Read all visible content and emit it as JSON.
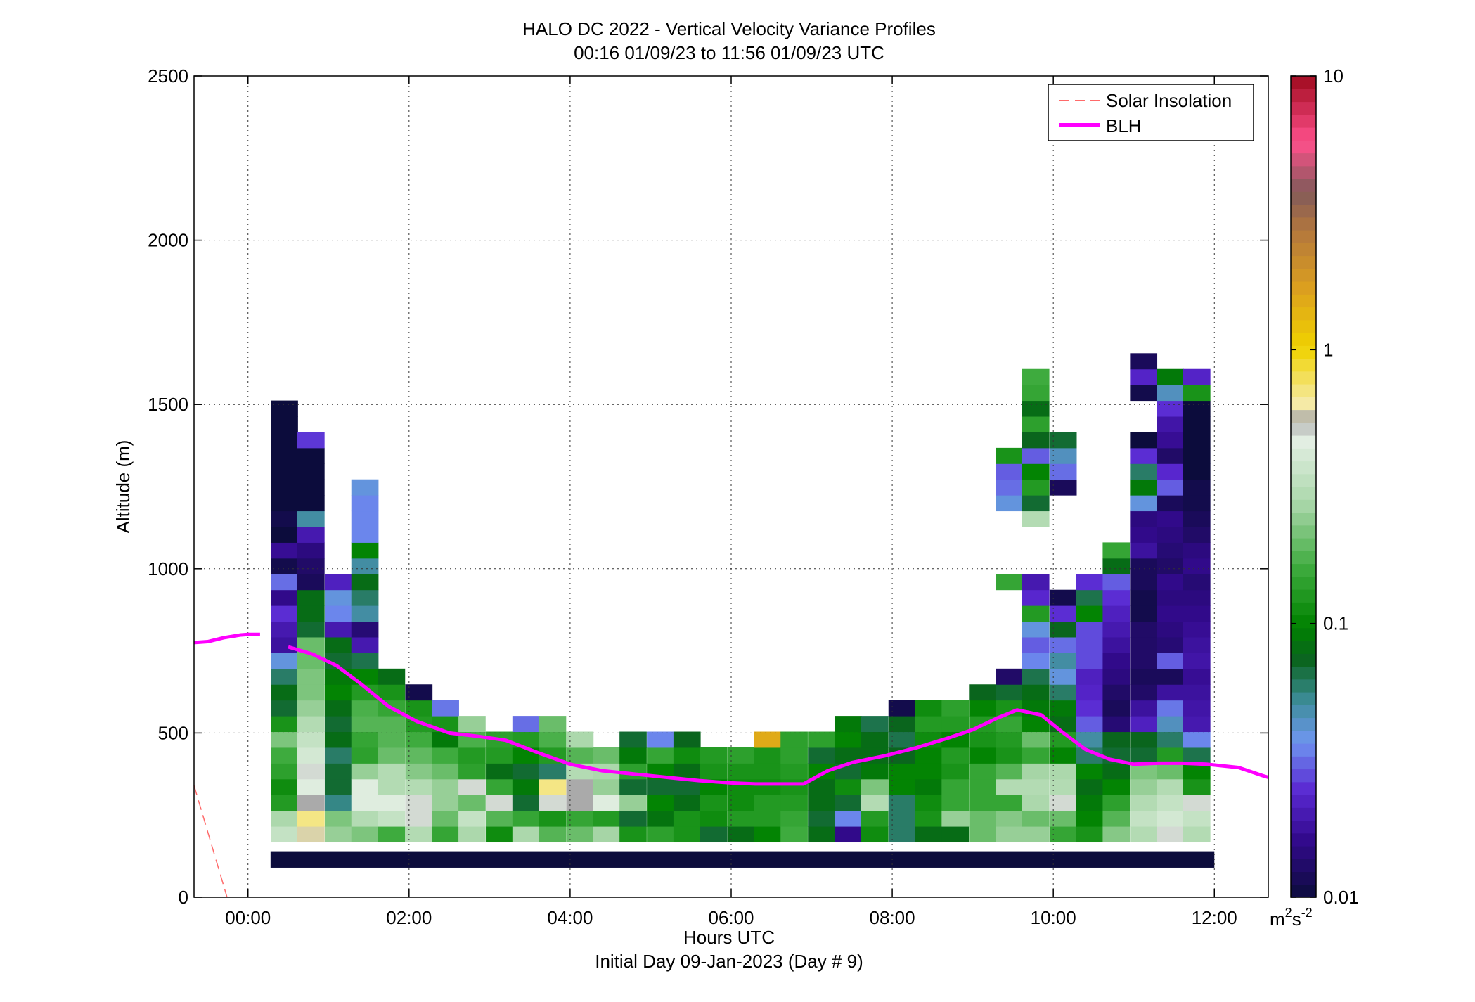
{
  "chart_data": {
    "type": "heatmap",
    "title": "HALO DC 2022 - Vertical Velocity Variance Profiles",
    "subtitle": "00:16 01/09/23 to 11:56 01/09/23  UTC",
    "xlabel": "Hours UTC",
    "xlabel2": "Initial Day 09-Jan-2023 (Day # 9)",
    "ylabel": "Altitude (m)",
    "x_unit": "hours",
    "xlim": [
      -0.67,
      12.67
    ],
    "ylim": [
      0,
      2500
    ],
    "x_ticks": [
      0,
      2,
      4,
      6,
      8,
      10,
      12
    ],
    "x_tick_labels": [
      "00:00",
      "02:00",
      "04:00",
      "06:00",
      "08:00",
      "10:00",
      "12:00"
    ],
    "y_ticks": [
      0,
      500,
      1000,
      1500,
      2000,
      2500
    ],
    "y_tick_labels": [
      "0",
      "500",
      "1000",
      "1500",
      "2000",
      "2500"
    ],
    "grid": true,
    "colorbar": {
      "scale": "log",
      "range": [
        0.01,
        10
      ],
      "ticks": [
        0.01,
        0.1,
        1,
        10
      ],
      "tick_labels": [
        "0.01",
        "0.1",
        "1",
        "10"
      ],
      "unit_base": "m",
      "unit_exp1": "2",
      "unit_mid": "s",
      "unit_exp2": "-2"
    },
    "legend": {
      "position": "top-right",
      "entries": [
        {
          "label": "Solar Insolation",
          "color": "#ff6a6a",
          "style": "dashed"
        },
        {
          "label": "BLH",
          "color": "#ff00ff",
          "style": "solid"
        }
      ]
    },
    "heatmap": {
      "dx_hours": 0.3333,
      "dy_m": 48,
      "base_altitude_m": 168,
      "bottom_band": {
        "x_start": 0.28,
        "x_end": 12.0,
        "alt_low": 90,
        "alt_high": 140,
        "value": 0.01
      },
      "columns": [
        {
          "x": 0.45,
          "values": [
            0.35,
            0.28,
            0.13,
            0.11,
            0.14,
            0.16,
            0.22,
            0.12,
            0.07,
            0.08,
            0.06,
            0.04,
            0.018,
            0.02,
            0.025,
            0.016,
            0.032,
            0.011,
            0.017,
            0.01,
            0.011,
            0.01,
            0.01,
            0.01,
            0.01,
            0.01,
            0.01,
            0.01
          ]
        },
        {
          "x": 0.78,
          "values": [
            0.6,
            0.7,
            0.55,
            0.45,
            0.5,
            0.4,
            0.35,
            0.3,
            0.25,
            0.22,
            0.22,
            0.2,
            0.2,
            0.07,
            0.08,
            0.08,
            0.012,
            0.013,
            0.015,
            0.02,
            0.05,
            0.01,
            0.01,
            0.01,
            0.01,
            0.026
          ]
        },
        {
          "x": 1.12,
          "values": [
            0.25,
            0.22,
            0.055,
            0.07,
            0.07,
            0.06,
            0.08,
            0.07,
            0.08,
            0.1,
            0.09,
            0.07,
            0.08,
            0.02,
            0.035,
            0.04,
            0.022
          ]
        },
        {
          "x": 1.45,
          "values": [
            0.22,
            0.3,
            0.45,
            0.45,
            0.25,
            0.14,
            0.15,
            0.18,
            0.17,
            0.13,
            0.1,
            0.065,
            0.02,
            0.014,
            0.05,
            0.06,
            0.08,
            0.05,
            0.1,
            0.035,
            0.035,
            0.035,
            0.04
          ]
        },
        {
          "x": 1.78,
          "values": [
            0.16,
            0.35,
            0.45,
            0.3,
            0.3,
            0.2,
            0.18,
            0.18,
            0.15,
            0.12,
            0.08
          ]
        },
        {
          "x": 2.12,
          "values": [
            0.3,
            0.5,
            0.5,
            0.3,
            0.23,
            0.19,
            0.16,
            0.13,
            0.12,
            0.011
          ]
        },
        {
          "x": 2.45,
          "values": [
            0.15,
            0.2,
            0.25,
            0.25,
            0.2,
            0.16,
            0.09,
            0.12,
            0.033
          ]
        },
        {
          "x": 2.78,
          "values": [
            0.28,
            0.35,
            0.2,
            0.5,
            0.14,
            0.13,
            0.17,
            0.25
          ]
        },
        {
          "x": 3.12,
          "values": [
            0.11,
            0.18,
            0.5,
            0.15,
            0.08,
            0.13,
            0.14
          ]
        },
        {
          "x": 3.45,
          "values": [
            0.28,
            0.15,
            0.07,
            0.09,
            0.07,
            0.1,
            0.13,
            0.032
          ]
        },
        {
          "x": 3.78,
          "values": [
            0.18,
            0.12,
            0.5,
            0.7,
            0.06,
            0.13,
            0.17,
            0.2
          ]
        },
        {
          "x": 4.12,
          "values": [
            0.2,
            0.15,
            0.55,
            0.55,
            0.3,
            0.18,
            0.28
          ]
        },
        {
          "x": 4.45,
          "values": [
            0.27,
            0.13,
            0.45,
            0.25,
            0.28,
            0.2
          ]
        },
        {
          "x": 4.78,
          "values": [
            0.12,
            0.07,
            0.25,
            0.07,
            0.14,
            0.09,
            0.07
          ]
        },
        {
          "x": 5.12,
          "values": [
            0.14,
            0.085,
            0.1,
            0.07,
            0.1,
            0.15,
            0.035
          ]
        },
        {
          "x": 5.45,
          "values": [
            0.12,
            0.12,
            0.08,
            0.07,
            0.08,
            0.11,
            0.075
          ]
        },
        {
          "x": 5.78,
          "values": [
            0.07,
            0.11,
            0.12,
            0.1,
            0.12,
            0.13
          ]
        },
        {
          "x": 6.12,
          "values": [
            0.08,
            0.13,
            0.11,
            0.11,
            0.12,
            0.14
          ]
        },
        {
          "x": 6.45,
          "values": [
            0.1,
            0.13,
            0.13,
            0.11,
            0.12,
            0.12,
            1.5
          ]
        },
        {
          "x": 6.78,
          "values": [
            0.16,
            0.15,
            0.13,
            0.12,
            0.13,
            0.14,
            0.14
          ]
        },
        {
          "x": 7.12,
          "values": [
            0.08,
            0.07,
            0.08,
            0.08,
            0.1,
            0.07,
            0.14
          ]
        },
        {
          "x": 7.45,
          "values": [
            0.016,
            0.035,
            0.07,
            0.11,
            0.07,
            0.08,
            0.1,
            0.09
          ]
        },
        {
          "x": 7.78,
          "values": [
            0.11,
            0.13,
            0.3,
            0.22,
            0.09,
            0.08,
            0.08,
            0.065
          ]
        },
        {
          "x": 8.12,
          "values": [
            0.06,
            0.06,
            0.06,
            0.1,
            0.1,
            0.075,
            0.065,
            0.075,
            0.011
          ]
        },
        {
          "x": 8.45,
          "values": [
            0.08,
            0.12,
            0.11,
            0.09,
            0.1,
            0.1,
            0.11,
            0.13,
            0.11
          ]
        },
        {
          "x": 8.78,
          "values": [
            0.08,
            0.25,
            0.15,
            0.15,
            0.12,
            0.13,
            0.1,
            0.13,
            0.14
          ]
        },
        {
          "x": 9.12,
          "values": [
            0.2,
            0.2,
            0.15,
            0.15,
            0.15,
            0.1,
            0.12,
            0.13,
            0.1,
            0.075
          ]
        },
        {
          "x": 9.45,
          "values": [
            0.25,
            0.23,
            0.15,
            0.3,
            0.18,
            0.12,
            0.13,
            0.15,
            0.12,
            0.07,
            0.013,
            0,
            0,
            0,
            0,
            0,
            0.15,
            0,
            0,
            0,
            0,
            0.04,
            0.032,
            0.03,
            0.12
          ]
        },
        {
          "x": 9.78,
          "values": [
            0.25,
            0.2,
            0.28,
            0.3,
            0.27,
            0.15,
            0.2,
            0.1,
            0.09,
            0.08,
            0.065,
            0.035,
            0.03,
            0.04,
            0.13,
            0.024,
            0.02,
            0,
            0,
            0,
            0.3,
            0.07,
            0.13,
            0.1,
            0.03,
            0.075,
            0.14,
            0.08,
            0.15,
            0.16
          ]
        },
        {
          "x": 10.12,
          "values": [
            0.15,
            0.2,
            0.5,
            0.3,
            0.28,
            0.1,
            0.13,
            0.08,
            0.09,
            0.06,
            0.04,
            0.05,
            0.032,
            0.075,
            0.025,
            0.011,
            0,
            0,
            0,
            0,
            0,
            0,
            0.012,
            0.032,
            0.045,
            0.07
          ]
        },
        {
          "x": 10.45,
          "values": [
            0.12,
            0.1,
            0.09,
            0.08,
            0.1,
            0.06,
            0.05,
            0.03,
            0.025,
            0.023,
            0.022,
            0.028,
            0.028,
            0.028,
            0.1,
            0.065,
            0.025
          ]
        },
        {
          "x": 10.78,
          "values": [
            0.23,
            0.18,
            0.14,
            0.1,
            0.08,
            0.07,
            0.075,
            0.014,
            0.012,
            0.013,
            0.015,
            0.016,
            0.018,
            0.02,
            0.022,
            0.025,
            0.03,
            0.08,
            0.15
          ]
        },
        {
          "x": 11.12,
          "values": [
            0.3,
            0.35,
            0.3,
            0.25,
            0.22,
            0.07,
            0.075,
            0.022,
            0.018,
            0.013,
            0.012,
            0.013,
            0.013,
            0.013,
            0.011,
            0.011,
            0.012,
            0.012,
            0.018,
            0.016,
            0.015,
            0.04,
            0.09,
            0.06,
            0.025,
            0.01,
            0,
            0,
            0.011,
            0.023,
            0.012
          ]
        },
        {
          "x": 11.45,
          "values": [
            0.5,
            0.4,
            0.35,
            0.3,
            0.2,
            0.13,
            0.06,
            0.045,
            0.033,
            0.018,
            0.012,
            0.03,
            0.014,
            0.015,
            0.016,
            0.015,
            0.016,
            0.013,
            0.014,
            0.015,
            0.016,
            0.012,
            0.03,
            0.024,
            0.013,
            0.017,
            0.019,
            0.025,
            0.045,
            0.09
          ]
        },
        {
          "x": 11.78,
          "values": [
            0.3,
            0.35,
            0.5,
            0.12,
            0.1,
            0.065,
            0.035,
            0.02,
            0.019,
            0.018,
            0.017,
            0.019,
            0.018,
            0.017,
            0.016,
            0.015,
            0.014,
            0.016,
            0.015,
            0.013,
            0.012,
            0.011,
            0.011,
            0.01,
            0.01,
            0.01,
            0.01,
            0.01,
            0.12,
            0.023
          ]
        }
      ]
    },
    "series": [
      {
        "name": "BLH",
        "segments": [
          {
            "x": [
              -0.67,
              -0.5,
              -0.3,
              -0.1,
              0.0,
              0.15
            ],
            "y": [
              775,
              778,
              790,
              798,
              800,
              800
            ]
          },
          {
            "x": [
              0.5,
              0.8,
              1.1,
              1.4,
              1.75,
              2.1,
              2.5,
              2.85,
              3.2,
              3.6,
              4.0,
              4.4,
              4.8,
              5.2,
              5.6,
              6.0,
              6.3,
              6.6,
              6.9,
              7.2,
              7.5,
              7.9,
              8.3,
              8.7,
              9.0,
              9.3,
              9.55,
              9.85,
              10.1,
              10.4,
              10.7,
              11.0,
              11.3,
              11.6,
              11.9,
              12.3,
              12.6,
              12.67
            ],
            "y": [
              762,
              740,
              705,
              650,
              580,
              535,
              500,
              490,
              478,
              440,
              405,
              385,
              375,
              365,
              355,
              348,
              345,
              345,
              345,
              385,
              410,
              430,
              455,
              485,
              510,
              545,
              570,
              555,
              505,
              450,
              420,
              405,
              408,
              408,
              405,
              395,
              370,
              365
            ]
          }
        ]
      },
      {
        "name": "Solar Insolation",
        "x": [
          -0.67,
          -0.26
        ],
        "y": [
          340,
          0
        ]
      }
    ]
  }
}
